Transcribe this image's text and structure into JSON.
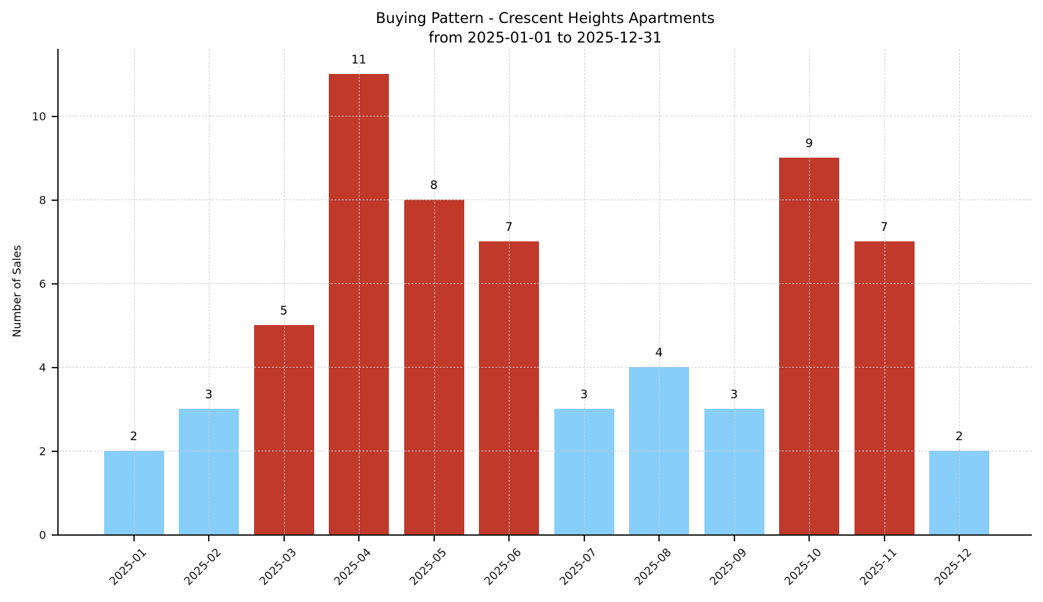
{
  "figure": {
    "title_line1": "Buying Pattern - Crescent Heights Apartments",
    "title_line2": "from 2025-01-01 to 2025-12-31"
  },
  "chart_data": {
    "type": "bar",
    "title": "Buying Pattern - Crescent Heights Apartments\nfrom 2025-01-01 to 2025-12-31",
    "categories": [
      "2025-01",
      "2025-02",
      "2025-03",
      "2025-04",
      "2025-05",
      "2025-06",
      "2025-07",
      "2025-08",
      "2025-09",
      "2025-10",
      "2025-11",
      "2025-12"
    ],
    "values": [
      2,
      3,
      5,
      11,
      8,
      7,
      3,
      4,
      3,
      9,
      7,
      2
    ],
    "bar_colors": [
      "#87CEFA",
      "#87CEFA",
      "#C0392B",
      "#C0392B",
      "#C0392B",
      "#C0392B",
      "#87CEFA",
      "#87CEFA",
      "#87CEFA",
      "#C0392B",
      "#C0392B",
      "#87CEFA"
    ],
    "xlabel": "",
    "ylabel": "Number of Sales",
    "yticks": [
      0,
      2,
      4,
      6,
      8,
      10
    ],
    "ylim": [
      0,
      11.6
    ],
    "x_tick_rotation_deg": 45,
    "bar_width_fraction": 0.8,
    "value_labels_shown": true,
    "grid": {
      "horizontal": true,
      "vertical": true,
      "style": "dashed",
      "color": "#cccccc",
      "above_bars": true
    },
    "legend": null,
    "colors": {
      "low_bar": "#87CEFA",
      "high_bar": "#C0392B",
      "spine": "#1a1a1a",
      "text": "#000000",
      "background": "#ffffff"
    }
  }
}
